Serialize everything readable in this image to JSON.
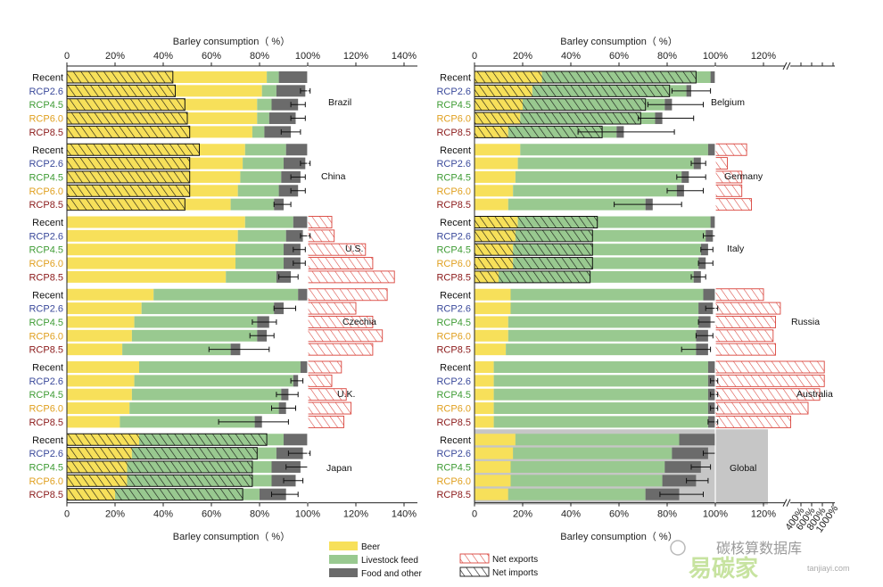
{
  "colors": {
    "beer": "#f7e05a",
    "feed": "#99c990",
    "food": "#6b6b6b",
    "exports": "#d9423a",
    "imports": "#111111",
    "global_bg": "#c6c6c6",
    "recent": "#111111",
    "rcp26": "#3b4a9b",
    "rcp45": "#3f9c35",
    "rcp60": "#e0a020",
    "rcp85": "#8b1a1a"
  },
  "chart_data": {
    "type": "bar",
    "stacking": "horizontal-stacked",
    "axis_title": "Barley consumption（ %）",
    "scenarios": [
      "Recent",
      "RCP2.6",
      "RCP4.5",
      "RCP6.0",
      "RCP8.5"
    ],
    "legend": {
      "beer": "Beer",
      "feed": "Livestock feed",
      "food": "Food and other",
      "exports": "Net exports",
      "imports": "Net imports"
    },
    "left_panel": {
      "xlim": [
        0,
        140
      ],
      "ticks": [
        "0",
        "20%",
        "40%",
        "60%",
        "80%",
        "100%",
        "120%",
        "140%"
      ],
      "regions": [
        {
          "name": "Brazil",
          "rows": [
            {
              "beer": 83,
              "feed": 5,
              "food": 12,
              "exports": 0,
              "imports": 44
            },
            {
              "beer": 81,
              "feed": 6,
              "food": 12,
              "exports": 0,
              "imports": 45,
              "err": [
                97,
                101
              ]
            },
            {
              "beer": 79,
              "feed": 6,
              "food": 11,
              "exports": 0,
              "imports": 49,
              "err": [
                93,
                99
              ]
            },
            {
              "beer": 79,
              "feed": 5,
              "food": 11,
              "exports": 0,
              "imports": 50,
              "err": [
                93,
                99
              ]
            },
            {
              "beer": 77,
              "feed": 5,
              "food": 11,
              "exports": 0,
              "imports": 51,
              "err": [
                89,
                97
              ]
            }
          ]
        },
        {
          "name": "China",
          "rows": [
            {
              "beer": 74,
              "feed": 17,
              "food": 9,
              "exports": 0,
              "imports": 55
            },
            {
              "beer": 73,
              "feed": 17,
              "food": 9,
              "exports": 0,
              "imports": 51,
              "err": [
                97,
                101
              ]
            },
            {
              "beer": 72,
              "feed": 17,
              "food": 8,
              "exports": 0,
              "imports": 51,
              "err": [
                93,
                99
              ]
            },
            {
              "beer": 71,
              "feed": 17,
              "food": 8,
              "exports": 0,
              "imports": 51,
              "err": [
                93,
                99
              ]
            },
            {
              "beer": 68,
              "feed": 18,
              "food": 4,
              "exports": 0,
              "imports": 49,
              "err": [
                86,
                93
              ]
            }
          ]
        },
        {
          "name": "U.S.",
          "rows": [
            {
              "beer": 74,
              "feed": 20,
              "food": 6,
              "exports": 10,
              "imports": 0
            },
            {
              "beer": 71,
              "feed": 20,
              "food": 7,
              "exports": 11,
              "imports": 0,
              "err": [
                97,
                101
              ]
            },
            {
              "beer": 70,
              "feed": 20,
              "food": 7,
              "exports": 24,
              "imports": 0,
              "err": [
                94,
                99
              ]
            },
            {
              "beer": 70,
              "feed": 20,
              "food": 7,
              "exports": 27,
              "imports": 0,
              "err": [
                94,
                99
              ]
            },
            {
              "beer": 66,
              "feed": 21,
              "food": 6,
              "exports": 36,
              "imports": 0,
              "err": [
                88,
                96
              ]
            }
          ]
        },
        {
          "name": "Czechia",
          "rows": [
            {
              "beer": 36,
              "feed": 60,
              "food": 4,
              "exports": 33,
              "imports": 0
            },
            {
              "beer": 31,
              "feed": 55,
              "food": 4,
              "exports": 20,
              "imports": 0,
              "err": [
                86,
                95
              ]
            },
            {
              "beer": 28,
              "feed": 51,
              "food": 5,
              "exports": 27,
              "imports": 0,
              "err": [
                77,
                87
              ]
            },
            {
              "beer": 27,
              "feed": 52,
              "food": 4,
              "exports": 31,
              "imports": 0,
              "err": [
                76,
                86
              ]
            },
            {
              "beer": 23,
              "feed": 45,
              "food": 4,
              "exports": 27,
              "imports": 0,
              "err": [
                59,
                84
              ]
            }
          ]
        },
        {
          "name": "U.K.",
          "rows": [
            {
              "beer": 30,
              "feed": 67,
              "food": 3,
              "exports": 14,
              "imports": 0
            },
            {
              "beer": 28,
              "feed": 66,
              "food": 2,
              "exports": 10,
              "imports": 0,
              "err": [
                93,
                98
              ]
            },
            {
              "beer": 27,
              "feed": 62,
              "food": 3,
              "exports": 16,
              "imports": 0,
              "err": [
                87,
                96
              ]
            },
            {
              "beer": 26,
              "feed": 62,
              "food": 3,
              "exports": 18,
              "imports": 0,
              "err": [
                85,
                95
              ]
            },
            {
              "beer": 22,
              "feed": 56,
              "food": 3,
              "exports": 15,
              "imports": 0,
              "err": [
                63,
                92
              ]
            }
          ]
        },
        {
          "name": "Japan",
          "rows": [
            {
              "beer": 30,
              "feed": 60,
              "food": 10,
              "exports": 0,
              "imports": 83
            },
            {
              "beer": 27,
              "feed": 60,
              "food": 11,
              "exports": 0,
              "imports": 79,
              "err": [
                92,
                101
              ]
            },
            {
              "beer": 25,
              "feed": 60,
              "food": 12,
              "exports": 0,
              "imports": 77,
              "err": [
                91,
                100
              ]
            },
            {
              "beer": 25,
              "feed": 60,
              "food": 10,
              "exports": 0,
              "imports": 77,
              "err": [
                90,
                98
              ]
            },
            {
              "beer": 20,
              "feed": 60,
              "food": 11,
              "exports": 0,
              "imports": 73,
              "err": [
                85,
                96
              ]
            }
          ]
        }
      ]
    },
    "right_panel": {
      "xlim": [
        0,
        130
      ],
      "ticks": [
        "0",
        "20%",
        "40%",
        "60%",
        "80%",
        "100%",
        "120%"
      ],
      "broken_ticks": [
        "400%",
        "600%",
        "800%",
        "1000%"
      ],
      "regions": [
        {
          "name": "Belgium",
          "rows": [
            {
              "beer": 28,
              "feed": 70,
              "food": 2,
              "exports": 0,
              "imports": 92
            },
            {
              "beer": 24,
              "feed": 64,
              "food": 2,
              "exports": 0,
              "imports": 81,
              "err": [
                82,
                98
              ]
            },
            {
              "beer": 20,
              "feed": 59,
              "food": 3,
              "exports": 0,
              "imports": 71,
              "err": [
                72,
                95
              ]
            },
            {
              "beer": 19,
              "feed": 56,
              "food": 3,
              "exports": 0,
              "imports": 69,
              "err": [
                68,
                91
              ]
            },
            {
              "beer": 14,
              "feed": 45,
              "food": 3,
              "exports": 0,
              "imports": 53,
              "err": [
                43,
                83
              ]
            }
          ]
        },
        {
          "name": "Germany",
          "rows": [
            {
              "beer": 19,
              "feed": 78,
              "food": 3,
              "exports": 13,
              "imports": 0
            },
            {
              "beer": 18,
              "feed": 73,
              "food": 3,
              "exports": 5,
              "imports": 0,
              "err": [
                90,
                96
              ]
            },
            {
              "beer": 17,
              "feed": 69,
              "food": 3,
              "exports": 11,
              "imports": 0,
              "err": [
                84,
                96
              ]
            },
            {
              "beer": 16,
              "feed": 68,
              "food": 3,
              "exports": 11,
              "imports": 0,
              "err": [
                80,
                95
              ]
            },
            {
              "beer": 14,
              "feed": 57,
              "food": 3,
              "exports": 15,
              "imports": 0,
              "err": [
                58,
                86
              ]
            }
          ]
        },
        {
          "name": "Italy",
          "rows": [
            {
              "beer": 18,
              "feed": 80,
              "food": 2,
              "exports": 0,
              "imports": 51
            },
            {
              "beer": 17,
              "feed": 79,
              "food": 3,
              "exports": 0,
              "imports": 49,
              "err": [
                95,
                100
              ]
            },
            {
              "beer": 16,
              "feed": 78,
              "food": 3,
              "exports": 0,
              "imports": 49,
              "err": [
                94,
                99
              ]
            },
            {
              "beer": 16,
              "feed": 77,
              "food": 3,
              "exports": 0,
              "imports": 49,
              "err": [
                93,
                99
              ]
            },
            {
              "beer": 10,
              "feed": 81,
              "food": 3,
              "exports": 0,
              "imports": 48,
              "err": [
                90,
                96
              ]
            }
          ]
        },
        {
          "name": "Russia",
          "rows": [
            {
              "beer": 15,
              "feed": 80,
              "food": 5,
              "exports": 20,
              "imports": 0
            },
            {
              "beer": 15,
              "feed": 78,
              "food": 6,
              "exports": 27,
              "imports": 0,
              "err": [
                96,
                101
              ]
            },
            {
              "beer": 14,
              "feed": 79,
              "food": 5,
              "exports": 25,
              "imports": 0,
              "err": [
                93,
                100
              ]
            },
            {
              "beer": 14,
              "feed": 78,
              "food": 5,
              "exports": 24,
              "imports": 0,
              "err": [
                92,
                99
              ]
            },
            {
              "beer": 13,
              "feed": 79,
              "food": 5,
              "exports": 25,
              "imports": 0,
              "err": [
                86,
                98
              ]
            }
          ]
        },
        {
          "name": "Australia",
          "rows": [
            {
              "beer": 8,
              "feed": 89,
              "food": 3,
              "exports": 880,
              "imports": 0
            },
            {
              "beer": 8,
              "feed": 89,
              "food": 3,
              "exports": 880,
              "imports": 0,
              "err": [
                98,
                101
              ]
            },
            {
              "beer": 8,
              "feed": 89,
              "food": 3,
              "exports": 800,
              "imports": 0,
              "err": [
                98,
                101
              ]
            },
            {
              "beer": 8,
              "feed": 89,
              "food": 3,
              "exports": 600,
              "imports": 0,
              "err": [
                98,
                101
              ]
            },
            {
              "beer": 8,
              "feed": 89,
              "food": 3,
              "exports": 300,
              "imports": 0,
              "err": [
                97,
                101
              ]
            }
          ]
        },
        {
          "name": "Global",
          "rows": [
            {
              "beer": 17,
              "feed": 68,
              "food": 15,
              "exports": 0,
              "imports": 0
            },
            {
              "beer": 16,
              "feed": 66,
              "food": 15,
              "exports": 0,
              "imports": 0,
              "err": [
                95,
                100
              ]
            },
            {
              "beer": 15,
              "feed": 64,
              "food": 15,
              "exports": 0,
              "imports": 0,
              "err": [
                90,
                98
              ]
            },
            {
              "beer": 15,
              "feed": 63,
              "food": 14,
              "exports": 0,
              "imports": 0,
              "err": [
                88,
                97
              ]
            },
            {
              "beer": 14,
              "feed": 57,
              "food": 14,
              "exports": 0,
              "imports": 0,
              "err": [
                77,
                95
              ]
            }
          ]
        }
      ]
    }
  },
  "watermark": {
    "line1": "碳核算数据库",
    "line2": "易碳家",
    "line3": "tanjiayi.com"
  }
}
